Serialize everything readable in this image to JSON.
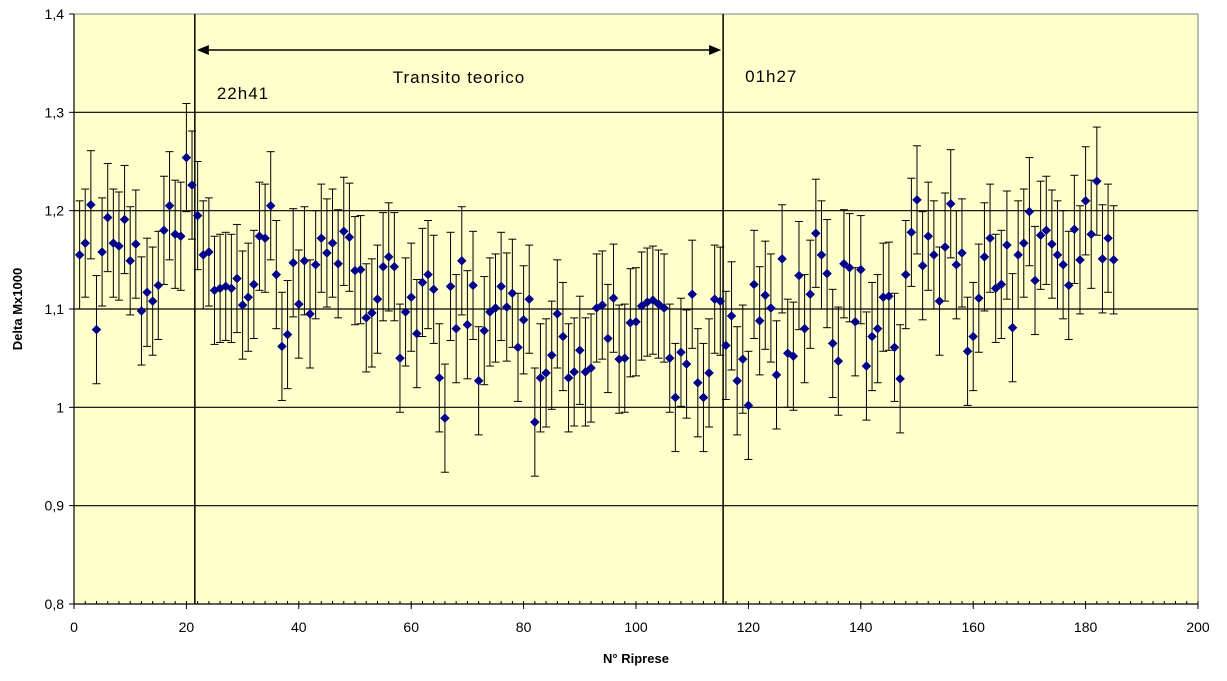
{
  "chart_data": {
    "type": "scatter",
    "title": "",
    "xlabel": "N° Riprese",
    "ylabel": "Delta Mx1000",
    "xlim": [
      0,
      200
    ],
    "ylim": [
      0.8,
      1.4
    ],
    "x_ticks": [
      "0",
      "20",
      "40",
      "60",
      "80",
      "100",
      "120",
      "140",
      "160",
      "180",
      "200"
    ],
    "y_ticks": [
      "0,8",
      "0,9",
      "1",
      "1,1",
      "1,2",
      "1,3",
      "1,4"
    ],
    "grid": "horizontal",
    "legend": "none",
    "colors": {
      "plot_background": "#FFFFCC",
      "marker": "#00008B",
      "error_bar": "#000000",
      "grid": "#000000"
    },
    "error": 0.055,
    "annotations": {
      "ingress_time": "22h41",
      "egress_time": "01h27",
      "arrow_label": "Transito teorico",
      "ingress_x": 21.5,
      "egress_x": 115.5
    },
    "series": [
      {
        "x": [
          1,
          2,
          3,
          4,
          5,
          6,
          7,
          8,
          9,
          10,
          11,
          12,
          13,
          14,
          15,
          16,
          17,
          18,
          19,
          20,
          21,
          22,
          23,
          24,
          25,
          26,
          27,
          28,
          29,
          30,
          31,
          32,
          33,
          34,
          35,
          36,
          37,
          38,
          39,
          40,
          41,
          42,
          43,
          44,
          45,
          46,
          47,
          48,
          49,
          50,
          51,
          52,
          53,
          54,
          55,
          56,
          57,
          58,
          59,
          60,
          61,
          62,
          63,
          64,
          65,
          66,
          67,
          68,
          69,
          70,
          71,
          72,
          73,
          74,
          75,
          76,
          77,
          78,
          79,
          80,
          81,
          82,
          83,
          84,
          85,
          86,
          87,
          88,
          89,
          90,
          91,
          92,
          93,
          94,
          95,
          96,
          97,
          98,
          99,
          100,
          101,
          102,
          103,
          104,
          105,
          106,
          107,
          108,
          109,
          110,
          111,
          112,
          113,
          114,
          115,
          116,
          117,
          118,
          119,
          120,
          121,
          122,
          123,
          124,
          125,
          126,
          127,
          128,
          129,
          130,
          131,
          132,
          133,
          134,
          135,
          136,
          137,
          138,
          139,
          140,
          141,
          142,
          143,
          144,
          145,
          146,
          147,
          148,
          149,
          150,
          151,
          152,
          153,
          154,
          155,
          156,
          157,
          158,
          159,
          160,
          161,
          162,
          163,
          164,
          165,
          166,
          167,
          168,
          169,
          170,
          171,
          172,
          173,
          174,
          175,
          176,
          177,
          178,
          179,
          180,
          181,
          182,
          183,
          184,
          185
        ],
        "y": [
          1.155,
          1.167,
          1.206,
          1.079,
          1.158,
          1.193,
          1.167,
          1.164,
          1.191,
          1.149,
          1.166,
          1.098,
          1.117,
          1.108,
          1.124,
          1.18,
          1.205,
          1.176,
          1.174,
          1.254,
          1.226,
          1.195,
          1.155,
          1.158,
          1.119,
          1.121,
          1.123,
          1.121,
          1.131,
          1.104,
          1.112,
          1.125,
          1.174,
          1.172,
          1.205,
          1.135,
          1.062,
          1.074,
          1.147,
          1.105,
          1.149,
          1.095,
          1.145,
          1.172,
          1.157,
          1.167,
          1.146,
          1.179,
          1.173,
          1.139,
          1.14,
          1.091,
          1.096,
          1.11,
          1.143,
          1.153,
          1.143,
          1.05,
          1.097,
          1.112,
          1.075,
          1.127,
          1.135,
          1.12,
          1.03,
          0.989,
          1.123,
          1.08,
          1.149,
          1.084,
          1.124,
          1.027,
          1.078,
          1.097,
          1.101,
          1.123,
          1.102,
          1.116,
          1.061,
          1.089,
          1.11,
          0.985,
          1.03,
          1.035,
          1.053,
          1.095,
          1.072,
          1.03,
          1.036,
          1.058,
          1.036,
          1.04,
          1.101,
          1.104,
          1.07,
          1.111,
          1.049,
          1.05,
          1.086,
          1.087,
          1.103,
          1.107,
          1.109,
          1.105,
          1.101,
          1.05,
          1.01,
          1.056,
          1.044,
          1.115,
          1.025,
          1.01,
          1.035,
          1.11,
          1.108,
          1.063,
          1.093,
          1.027,
          1.049,
          1.002,
          1.125,
          1.088,
          1.114,
          1.101,
          1.033,
          1.151,
          1.055,
          1.052,
          1.134,
          1.08,
          1.115,
          1.177,
          1.155,
          1.136,
          1.065,
          1.047,
          1.146,
          1.142,
          1.087,
          1.14,
          1.042,
          1.072,
          1.08,
          1.112,
          1.113,
          1.061,
          1.029,
          1.135,
          1.178,
          1.211,
          1.144,
          1.174,
          1.155,
          1.108,
          1.163,
          1.207,
          1.145,
          1.157,
          1.057,
          1.072,
          1.111,
          1.153,
          1.172,
          1.121,
          1.125,
          1.165,
          1.081,
          1.155,
          1.167,
          1.199,
          1.129,
          1.175,
          1.18,
          1.166,
          1.155,
          1.145,
          1.124,
          1.181,
          1.15,
          1.21,
          1.176,
          1.23,
          1.151,
          1.172,
          1.15
        ]
      }
    ]
  }
}
